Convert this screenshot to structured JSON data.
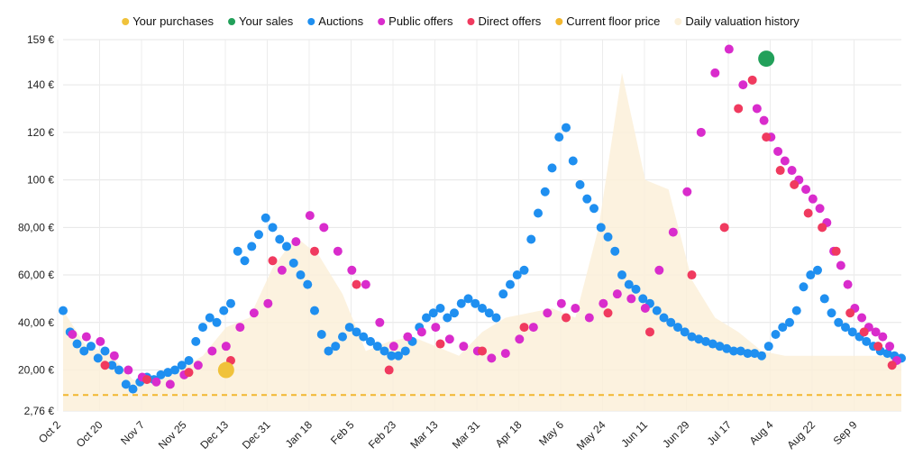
{
  "chart_data": {
    "type": "scatter",
    "title": "",
    "xlabel": "",
    "ylabel": "",
    "ylim": [
      2.76,
      159
    ],
    "y_ticks": [
      "2,76 €",
      "20,00 €",
      "40,00 €",
      "60,00 €",
      "80,00 €",
      "100 €",
      "120 €",
      "140 €",
      "159 €"
    ],
    "y_tick_values": [
      2.76,
      20,
      40,
      60,
      80,
      100,
      120,
      140,
      159
    ],
    "x_ticks": [
      "Oct 2",
      "Oct 20",
      "Nov 7",
      "Nov 25",
      "Dec 13",
      "Dec 31",
      "Jan 18",
      "Feb 5",
      "Feb 23",
      "Mar 13",
      "Mar 31",
      "Apr 18",
      "May 6",
      "May 24",
      "Jun 11",
      "Jun 29",
      "Jul 17",
      "Aug 4",
      "Aug 22",
      "Sep 9"
    ],
    "x_days_span": 360,
    "grid": true,
    "legend_placement": "top-center",
    "legend": [
      {
        "name": "Your purchases",
        "color": "#f0c23b",
        "style": "dot"
      },
      {
        "name": "Your sales",
        "color": "#22a05a",
        "style": "dot"
      },
      {
        "name": "Auctions",
        "color": "#1f8ff0",
        "style": "dot"
      },
      {
        "name": "Public offers",
        "color": "#d92ccc",
        "style": "dot"
      },
      {
        "name": "Direct offers",
        "color": "#f03a5f",
        "style": "dot"
      },
      {
        "name": "Current floor price",
        "color": "#f2b730",
        "style": "dot"
      },
      {
        "name": "Daily valuation history",
        "color": "#fbf0d9",
        "style": "dot"
      }
    ],
    "floor_price": 9.5,
    "valuation_history": {
      "days": [
        0,
        10,
        20,
        30,
        40,
        50,
        60,
        70,
        80,
        90,
        100,
        110,
        120,
        130,
        140,
        150,
        160,
        170,
        180,
        190,
        200,
        210,
        220,
        230,
        240,
        250,
        260,
        270,
        280,
        290,
        300,
        310,
        320,
        330,
        340,
        350,
        360
      ],
      "values": [
        45,
        30,
        27,
        16,
        15,
        20,
        26,
        38,
        42,
        63,
        76,
        68,
        52,
        28,
        32,
        34,
        30,
        26,
        36,
        42,
        44,
        46,
        42,
        80,
        145,
        100,
        96,
        58,
        42,
        36,
        28,
        26,
        26,
        26,
        26,
        26,
        26
      ]
    },
    "series": [
      {
        "name": "Your purchases",
        "x": [
          70
        ],
        "y": [
          20
        ]
      },
      {
        "name": "Your sales",
        "x": [
          302
        ],
        "y": [
          151
        ]
      },
      {
        "name": "Auctions",
        "x": [
          0,
          3,
          6,
          9,
          12,
          15,
          18,
          21,
          24,
          27,
          30,
          33,
          36,
          39,
          42,
          45,
          48,
          51,
          54,
          57,
          60,
          63,
          66,
          69,
          72,
          75,
          78,
          81,
          84,
          87,
          90,
          93,
          96,
          99,
          102,
          105,
          108,
          111,
          114,
          117,
          120,
          123,
          126,
          129,
          132,
          135,
          138,
          141,
          144,
          147,
          150,
          153,
          156,
          159,
          162,
          165,
          168,
          171,
          174,
          177,
          180,
          183,
          186,
          189,
          192,
          195,
          198,
          201,
          204,
          207,
          210,
          213,
          216,
          219,
          222,
          225,
          228,
          231,
          234,
          237,
          240,
          243,
          246,
          249,
          252,
          255,
          258,
          261,
          264,
          267,
          270,
          273,
          276,
          279,
          282,
          285,
          288,
          291,
          294,
          297,
          300,
          303,
          306,
          309,
          312,
          315,
          318,
          321,
          324,
          327,
          330,
          333,
          336,
          339,
          342,
          345,
          348,
          351,
          354,
          357,
          360
        ],
        "y": [
          45,
          36,
          31,
          28,
          30,
          25,
          28,
          22,
          20,
          14,
          12,
          15,
          17,
          16,
          18,
          19,
          20,
          22,
          24,
          32,
          38,
          42,
          40,
          45,
          48,
          70,
          66,
          72,
          77,
          84,
          80,
          75,
          72,
          65,
          60,
          56,
          45,
          35,
          28,
          30,
          34,
          38,
          36,
          34,
          32,
          30,
          28,
          26,
          26,
          28,
          32,
          38,
          42,
          44,
          46,
          42,
          44,
          48,
          50,
          48,
          46,
          44,
          42,
          52,
          56,
          60,
          62,
          75,
          86,
          95,
          105,
          118,
          122,
          108,
          98,
          92,
          88,
          80,
          76,
          70,
          60,
          56,
          54,
          50,
          48,
          45,
          42,
          40,
          38,
          36,
          34,
          33,
          32,
          31,
          30,
          29,
          28,
          28,
          27,
          27,
          26,
          30,
          35,
          38,
          40,
          45,
          55,
          60,
          62,
          50,
          44,
          40,
          38,
          36,
          34,
          32,
          30,
          28,
          27,
          26,
          25
        ]
      },
      {
        "name": "Public offers",
        "x": [
          4,
          10,
          16,
          22,
          28,
          34,
          40,
          46,
          52,
          58,
          64,
          70,
          76,
          82,
          88,
          94,
          100,
          106,
          112,
          118,
          124,
          130,
          136,
          142,
          148,
          154,
          160,
          166,
          172,
          178,
          184,
          190,
          196,
          202,
          208,
          214,
          220,
          226,
          232,
          238,
          244,
          250,
          256,
          262,
          268,
          274,
          280,
          286,
          292,
          298,
          301,
          304,
          307,
          310,
          313,
          316,
          319,
          322,
          325,
          328,
          331,
          334,
          337,
          340,
          343,
          346,
          349,
          352,
          355,
          358
        ],
        "y": [
          35,
          34,
          32,
          26,
          20,
          17,
          15,
          14,
          18,
          22,
          28,
          30,
          38,
          44,
          48,
          62,
          74,
          85,
          80,
          70,
          62,
          56,
          40,
          30,
          34,
          36,
          38,
          33,
          30,
          28,
          25,
          27,
          33,
          38,
          44,
          48,
          46,
          42,
          48,
          52,
          50,
          46,
          62,
          78,
          95,
          120,
          145,
          155,
          140,
          130,
          125,
          118,
          112,
          108,
          104,
          100,
          96,
          92,
          88,
          82,
          70,
          64,
          56,
          46,
          42,
          38,
          36,
          34,
          30,
          24
        ]
      },
      {
        "name": "Direct offers",
        "x": [
          18,
          36,
          54,
          72,
          90,
          108,
          126,
          140,
          162,
          180,
          198,
          216,
          234,
          252,
          270,
          284,
          290,
          296,
          302,
          308,
          314,
          320,
          326,
          332,
          338,
          344,
          350,
          356
        ],
        "y": [
          22,
          16,
          19,
          24,
          66,
          70,
          56,
          20,
          31,
          28,
          38,
          42,
          44,
          36,
          60,
          80,
          130,
          142,
          118,
          104,
          98,
          86,
          80,
          70,
          44,
          36,
          30,
          22
        ]
      }
    ]
  }
}
